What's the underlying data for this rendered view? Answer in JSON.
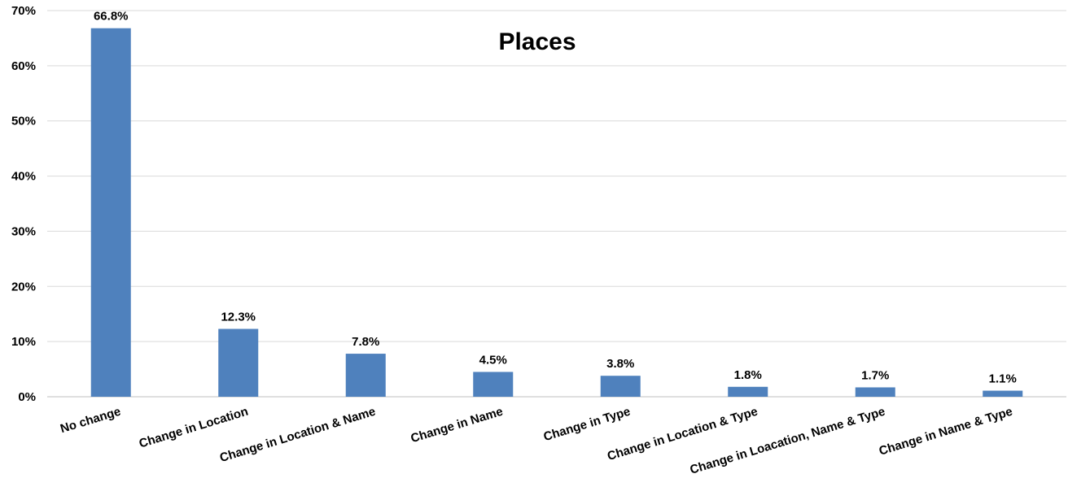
{
  "chart_data": {
    "type": "bar",
    "title": "Places",
    "categories": [
      "No change",
      "Change in Location",
      "Change in Location & Name",
      "Change in Name",
      "Change in Type",
      "Change in Location & Type",
      "Change in Loacation, Name & Type",
      "Change in Name & Type"
    ],
    "values": [
      66.8,
      12.3,
      7.8,
      4.5,
      3.8,
      1.8,
      1.7,
      1.1
    ],
    "data_labels": [
      "66.8%",
      "12.3%",
      "7.8%",
      "4.5%",
      "3.8%",
      "1.8%",
      "1.7%",
      "1.1%"
    ],
    "ylim": [
      0,
      70
    ],
    "yticks": [
      0,
      10,
      20,
      30,
      40,
      50,
      60,
      70
    ],
    "ytick_labels": [
      "0%",
      "10%",
      "20%",
      "30%",
      "40%",
      "50%",
      "60%",
      "70%"
    ],
    "xlabel": "",
    "ylabel": "",
    "grid": true,
    "legend": "none",
    "bar_color": "#4f81bd"
  }
}
